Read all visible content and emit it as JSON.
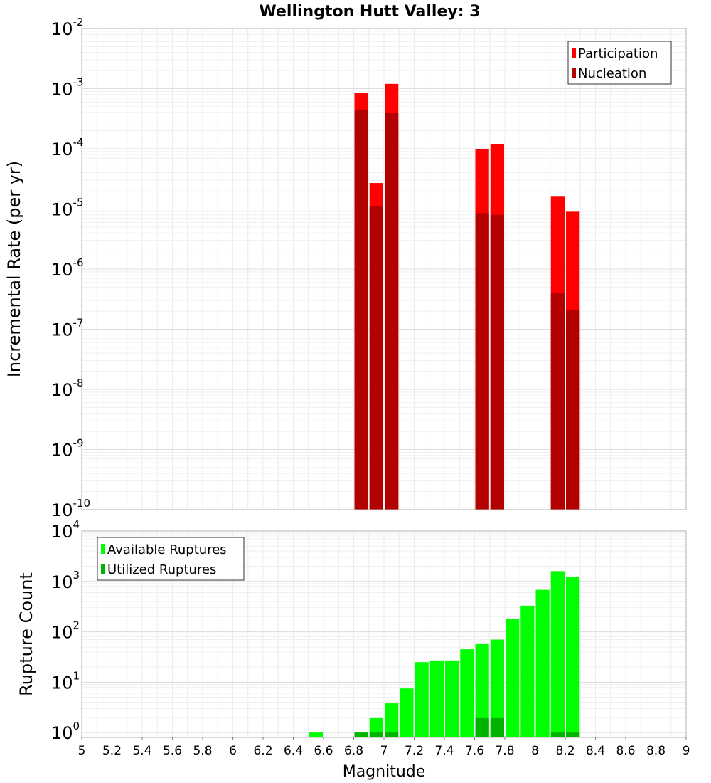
{
  "title": "Wellington Hutt Valley: 3",
  "chart_data": [
    {
      "type": "bar",
      "ylabel": "Incremental Rate (per yr)",
      "xlabel": "",
      "yscale": "log",
      "ylim": [
        1e-10,
        0.01
      ],
      "xlim": [
        5,
        9
      ],
      "bar_width": 0.1,
      "grid": true,
      "legend_position": "top-right",
      "y_tick_labels": [
        {
          "base": "10",
          "exp": "-10"
        },
        {
          "base": "10",
          "exp": "-9"
        },
        {
          "base": "10",
          "exp": "-8"
        },
        {
          "base": "10",
          "exp": "-7"
        },
        {
          "base": "10",
          "exp": "-6"
        },
        {
          "base": "10",
          "exp": "-5"
        },
        {
          "base": "10",
          "exp": "-4"
        },
        {
          "base": "10",
          "exp": "-3"
        },
        {
          "base": "10",
          "exp": "-2"
        }
      ],
      "series": [
        {
          "name": "Participation",
          "color": "#ff0000",
          "x": [
            6.85,
            6.95,
            7.05,
            7.65,
            7.75,
            8.15,
            8.25
          ],
          "values": [
            0.00085,
            2.7e-05,
            0.0012,
            0.0001,
            0.00012,
            1.6e-05,
            9e-06
          ]
        },
        {
          "name": "Nucleation",
          "color": "#b30000",
          "x": [
            6.85,
            6.95,
            7.05,
            7.65,
            7.75,
            8.15,
            8.25
          ],
          "values": [
            0.00045,
            1.1e-05,
            0.00039,
            8.5e-06,
            8e-06,
            4e-07,
            2.1e-07
          ]
        }
      ]
    },
    {
      "type": "bar",
      "ylabel": "Rupture Count",
      "xlabel": "Magnitude",
      "yscale": "log",
      "ylim": [
        0.8,
        10000
      ],
      "xlim": [
        5,
        9
      ],
      "bar_width": 0.1,
      "grid": true,
      "legend_position": "top-left",
      "y_tick_labels": [
        {
          "base": "10",
          "exp": "0"
        },
        {
          "base": "10",
          "exp": "1"
        },
        {
          "base": "10",
          "exp": "2"
        },
        {
          "base": "10",
          "exp": "3"
        },
        {
          "base": "10",
          "exp": "4"
        }
      ],
      "x_tick_labels": [
        "5",
        "5.2",
        "5.4",
        "5.6",
        "5.8",
        "6",
        "6.2",
        "6.4",
        "6.6",
        "6.8",
        "7",
        "7.2",
        "7.4",
        "7.6",
        "7.8",
        "8",
        "8.2",
        "8.4",
        "8.6",
        "8.8",
        "9"
      ],
      "series": [
        {
          "name": "Available Ruptures",
          "color": "#00ff00",
          "x": [
            6.55,
            6.85,
            6.95,
            7.05,
            7.15,
            7.25,
            7.35,
            7.45,
            7.55,
            7.65,
            7.75,
            7.85,
            7.95,
            8.05,
            8.15,
            8.25
          ],
          "values": [
            1,
            1,
            2,
            3.8,
            7.5,
            25,
            27,
            27,
            45,
            57,
            70,
            180,
            330,
            680,
            1600,
            1250
          ]
        },
        {
          "name": "Utilized Ruptures",
          "color": "#00b300",
          "x": [
            6.85,
            6.95,
            7.05,
            7.65,
            7.75,
            8.15,
            8.25
          ],
          "values": [
            1,
            1,
            1,
            2,
            2,
            1,
            1
          ]
        }
      ]
    }
  ]
}
